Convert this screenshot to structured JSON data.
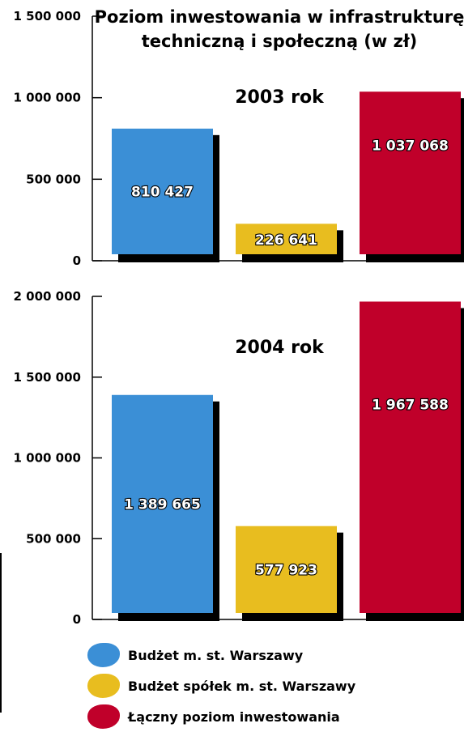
{
  "chart_data": [
    {
      "type": "bar",
      "title": "Poziom inwestowania w infrastrukturę techniczną i społeczną (w zł)",
      "year_label": "2003 rok",
      "categories": [
        "Budżet m. st. Warszawy",
        "Budżet spółek m. st. Warszawy",
        "Łączny poziom inwestowania"
      ],
      "values": [
        810427,
        226641,
        1037068
      ],
      "value_labels": [
        "810 427",
        "226 641",
        "1 037 068"
      ],
      "ylim": [
        0,
        1500000
      ],
      "yticks": [
        0,
        500000,
        1000000,
        1500000
      ],
      "ytick_labels": [
        "0",
        "500 000",
        "1 000 000",
        "1 500 000"
      ],
      "colors": [
        "#3b8fd6",
        "#e8bd1f",
        "#c0002a"
      ],
      "grid": false
    },
    {
      "type": "bar",
      "year_label": "2004 rok",
      "categories": [
        "Budżet m. st. Warszawy",
        "Budżet spółek m. st. Warszawy",
        "Łączny poziom inwestowania"
      ],
      "values": [
        1389665,
        577923,
        1967588
      ],
      "value_labels": [
        "1 389 665",
        "577 923",
        "1 967 588"
      ],
      "ylim": [
        0,
        2000000
      ],
      "yticks": [
        0,
        500000,
        1000000,
        1500000,
        2000000
      ],
      "ytick_labels": [
        "0",
        "500 000",
        "1 000 000",
        "1 500 000",
        "2 000 000"
      ],
      "colors": [
        "#3b8fd6",
        "#e8bd1f",
        "#c0002a"
      ],
      "grid": false
    }
  ],
  "title_line1": "Poziom inwestowania w infrastrukturę",
  "title_line2": "techniczną i społeczną (w zł)",
  "legend": [
    {
      "label": "Budżet m. st. Warszawy",
      "color": "#3b8fd6"
    },
    {
      "label": "Budżet spółek m. st. Warszawy",
      "color": "#e8bd1f"
    },
    {
      "label": "Łączny poziom inwestowania",
      "color": "#c0002a"
    }
  ]
}
